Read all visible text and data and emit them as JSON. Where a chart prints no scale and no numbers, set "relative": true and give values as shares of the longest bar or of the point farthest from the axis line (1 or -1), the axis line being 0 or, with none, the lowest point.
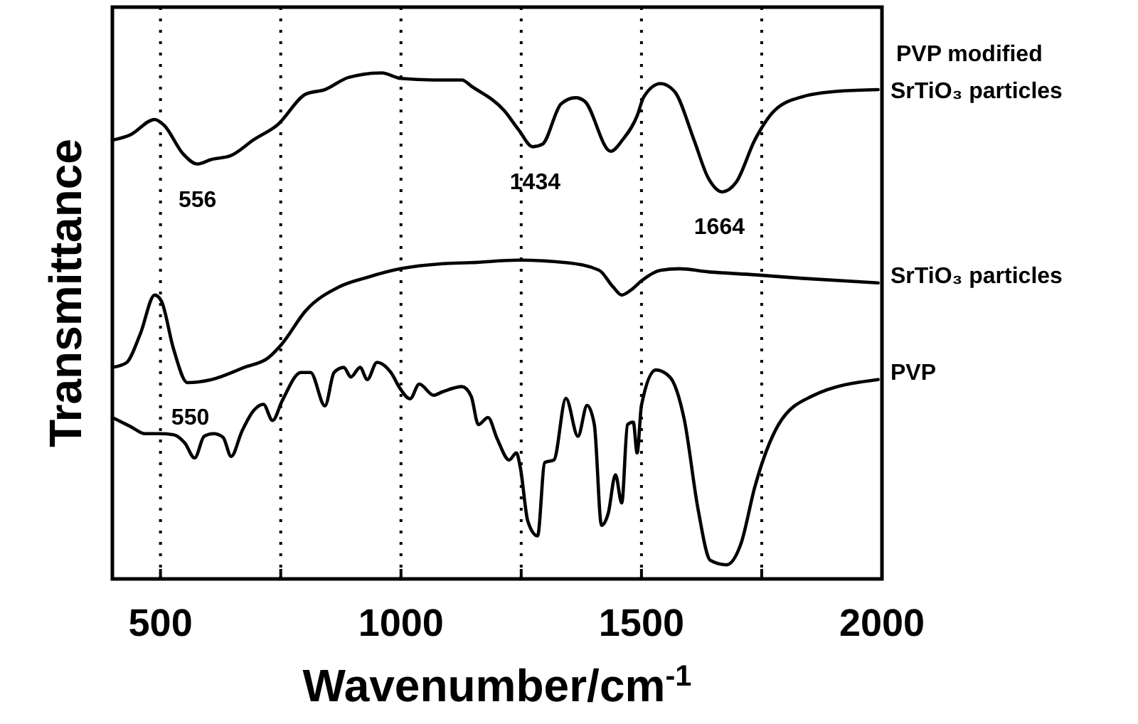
{
  "chart_data": {
    "type": "line",
    "relative": true,
    "xlabel": "Wavenumber/cm$^{-1}$",
    "ylabel": "Transmittance",
    "xlim": [
      400,
      2000
    ],
    "xticks": [
      500,
      {
        "value": 750,
        "label": null
      },
      1000,
      {
        "value": 1250,
        "label": null
      },
      1500,
      {
        "value": 1750,
        "label": null
      },
      2000
    ],
    "grid": "x",
    "legend": false,
    "marker": "none",
    "line_style": "solid",
    "annotations": [
      {
        "text": "556",
        "x": 577,
        "y": 0.82
      },
      {
        "text": "1434",
        "x": 1279,
        "y": 0.854
      },
      {
        "text": "1664",
        "x": 1662,
        "y": 0.766
      },
      {
        "text": "550",
        "x": 562,
        "y": 0.39
      }
    ],
    "series": [
      {
        "name": "PVP modified SrTiO₃ particles",
        "color": "#000000",
        "x": [
          400,
          438,
          488,
          507,
          547,
          576,
          606,
          645,
          694,
          743,
          802,
          842,
          891,
          960,
          999,
          1068,
          1127,
          1146,
          1215,
          1245,
          1274,
          1294,
          1333,
          1363,
          1382,
          1436,
          1461,
          1491,
          1505,
          1540,
          1569,
          1609,
          1638,
          1668,
          1697,
          1736,
          1776,
          1835,
          1913,
          1992
        ],
        "values": [
          0.867,
          0.878,
          0.908,
          0.897,
          0.84,
          0.82,
          0.829,
          0.836,
          0.868,
          0.897,
          0.958,
          0.967,
          0.991,
          1.0,
          0.989,
          0.986,
          0.986,
          0.974,
          0.925,
          0.887,
          0.854,
          0.859,
          0.939,
          0.951,
          0.944,
          0.845,
          0.868,
          0.915,
          0.953,
          0.979,
          0.963,
          0.868,
          0.794,
          0.765,
          0.784,
          0.868,
          0.925,
          0.953,
          0.964,
          0.967
        ]
      },
      {
        "name": "SrTiO₃ particles",
        "color": "#000000",
        "x": [
          400,
          429,
          458,
          488,
          502,
          527,
          556,
          606,
          674,
          724,
          753,
          802,
          871,
          930,
          999,
          1087,
          1146,
          1245,
          1343,
          1412,
          1441,
          1459,
          1481,
          1500,
          1540,
          1579,
          1638,
          1736,
          1835,
          1992
        ],
        "values": [
          0.418,
          0.427,
          0.484,
          0.561,
          0.549,
          0.455,
          0.388,
          0.394,
          0.418,
          0.437,
          0.465,
          0.53,
          0.577,
          0.596,
          0.613,
          0.623,
          0.625,
          0.63,
          0.625,
          0.61,
          0.577,
          0.561,
          0.573,
          0.589,
          0.61,
          0.613,
          0.607,
          0.601,
          0.594,
          0.585
        ]
      },
      {
        "name": "PVP",
        "color": "#000000",
        "x": [
          400,
          438,
          468,
          497,
          527,
          551,
          571,
          591,
          610,
          630,
          647,
          669,
          694,
          714,
          733,
          753,
          792,
          812,
          842,
          861,
          881,
          896,
          915,
          930,
          950,
          979,
          999,
          1019,
          1038,
          1068,
          1087,
          1127,
          1146,
          1161,
          1181,
          1200,
          1225,
          1240,
          1248,
          1264,
          1284,
          1299,
          1318,
          1343,
          1368,
          1387,
          1402,
          1417,
          1431,
          1446,
          1459,
          1471,
          1483,
          1491,
          1500,
          1530,
          1559,
          1589,
          1618,
          1643,
          1677,
          1707,
          1736,
          1785,
          1854,
          1992
        ],
        "values": [
          0.319,
          0.301,
          0.287,
          0.287,
          0.285,
          0.268,
          0.239,
          0.282,
          0.287,
          0.28,
          0.242,
          0.291,
          0.333,
          0.345,
          0.313,
          0.352,
          0.408,
          0.408,
          0.342,
          0.408,
          0.418,
          0.399,
          0.418,
          0.394,
          0.428,
          0.408,
          0.375,
          0.356,
          0.385,
          0.363,
          0.37,
          0.38,
          0.361,
          0.305,
          0.319,
          0.277,
          0.235,
          0.249,
          0.221,
          0.113,
          0.085,
          0.23,
          0.235,
          0.357,
          0.282,
          0.343,
          0.305,
          0.106,
          0.13,
          0.206,
          0.15,
          0.305,
          0.31,
          0.249,
          0.343,
          0.413,
          0.399,
          0.315,
          0.136,
          0.037,
          0.028,
          0.07,
          0.183,
          0.305,
          0.361,
          0.394
        ]
      }
    ]
  }
}
